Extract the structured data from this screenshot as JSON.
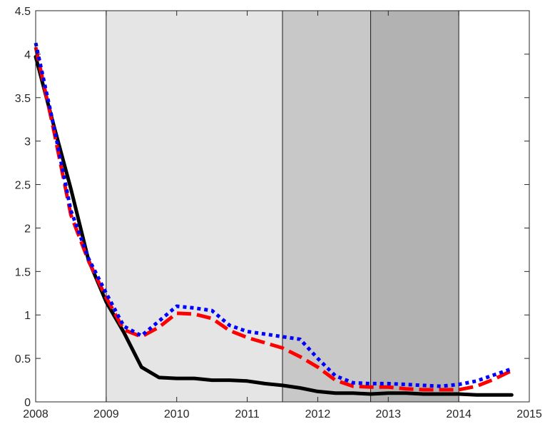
{
  "chart_data": {
    "type": "line",
    "xlim": [
      2008,
      2015
    ],
    "ylim": [
      0,
      4.5
    ],
    "x_ticks": [
      2008,
      2009,
      2010,
      2011,
      2012,
      2013,
      2014,
      2015
    ],
    "y_ticks": [
      0,
      0.5,
      1,
      1.5,
      2,
      2.5,
      3,
      3.5,
      4,
      4.5
    ],
    "x_tick_labels": [
      "2008",
      "2009",
      "2010",
      "2011",
      "2012",
      "2013",
      "2014",
      "2015"
    ],
    "y_tick_labels": [
      "0",
      "0.5",
      "1",
      "1.5",
      "2",
      "2.5",
      "3",
      "3.5",
      "4",
      "4.5"
    ],
    "grid": false,
    "shaded_periods": [
      {
        "start": 2009.0,
        "end": 2011.5,
        "color": "#e5e5e5"
      },
      {
        "start": 2011.5,
        "end": 2012.75,
        "color": "#c8c8c8"
      },
      {
        "start": 2012.75,
        "end": 2014.0,
        "color": "#b2b2b2"
      }
    ],
    "series": [
      {
        "style": "solid",
        "color": "#000000",
        "x": [
          2008.0,
          2008.25,
          2008.5,
          2008.75,
          2009.0,
          2009.25,
          2009.5,
          2009.75,
          2010.0,
          2010.25,
          2010.5,
          2010.75,
          2011.0,
          2011.25,
          2011.5,
          2011.75,
          2012.0,
          2012.25,
          2012.5,
          2012.75,
          2013.0,
          2013.25,
          2013.5,
          2013.75,
          2014.0,
          2014.25,
          2014.5,
          2014.75
        ],
        "y": [
          3.97,
          3.2,
          2.45,
          1.63,
          1.15,
          0.8,
          0.4,
          0.28,
          0.27,
          0.27,
          0.25,
          0.25,
          0.24,
          0.21,
          0.19,
          0.16,
          0.12,
          0.1,
          0.1,
          0.09,
          0.1,
          0.1,
          0.09,
          0.09,
          0.09,
          0.08,
          0.08,
          0.08
        ]
      },
      {
        "style": "dashed",
        "color": "#ff0000",
        "x": [
          2008.0,
          2008.25,
          2008.5,
          2008.75,
          2009.0,
          2009.25,
          2009.5,
          2009.75,
          2010.0,
          2010.25,
          2010.5,
          2010.75,
          2011.0,
          2011.25,
          2011.5,
          2011.75,
          2012.0,
          2012.25,
          2012.5,
          2012.75,
          2013.0,
          2013.25,
          2013.5,
          2013.75,
          2014.0,
          2014.25,
          2014.5,
          2014.75
        ],
        "y": [
          4.08,
          3.15,
          2.15,
          1.62,
          1.2,
          0.83,
          0.75,
          0.86,
          1.02,
          1.01,
          0.96,
          0.82,
          0.74,
          0.68,
          0.62,
          0.52,
          0.4,
          0.25,
          0.18,
          0.17,
          0.17,
          0.15,
          0.14,
          0.14,
          0.14,
          0.18,
          0.26,
          0.36
        ]
      },
      {
        "style": "dotted",
        "color": "#0000ff",
        "x": [
          2008.0,
          2008.25,
          2008.5,
          2008.75,
          2009.0,
          2009.25,
          2009.5,
          2009.75,
          2010.0,
          2010.25,
          2010.5,
          2010.75,
          2011.0,
          2011.25,
          2011.5,
          2011.75,
          2012.0,
          2012.25,
          2012.5,
          2012.75,
          2013.0,
          2013.25,
          2013.5,
          2013.75,
          2014.0,
          2014.25,
          2014.5,
          2014.75
        ],
        "y": [
          4.13,
          3.2,
          2.2,
          1.65,
          1.25,
          0.87,
          0.76,
          0.93,
          1.1,
          1.08,
          1.05,
          0.88,
          0.81,
          0.78,
          0.75,
          0.72,
          0.5,
          0.3,
          0.22,
          0.21,
          0.21,
          0.2,
          0.19,
          0.18,
          0.2,
          0.24,
          0.31,
          0.38
        ]
      }
    ]
  }
}
